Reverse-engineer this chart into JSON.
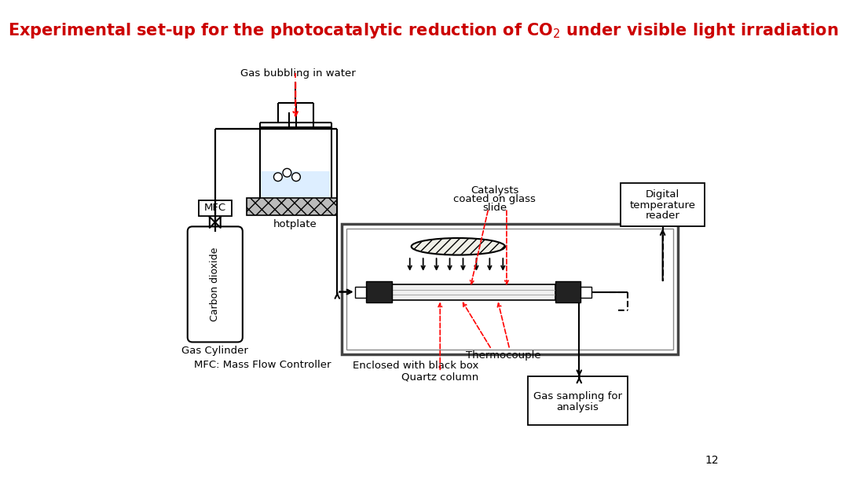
{
  "title": "Experimental set-up for the photocatalytic reduction of CO$_2$ under visible light irradiation",
  "title_color": "#CC0000",
  "title_fontsize": 15,
  "background_color": "#ffffff",
  "page_number": "12"
}
